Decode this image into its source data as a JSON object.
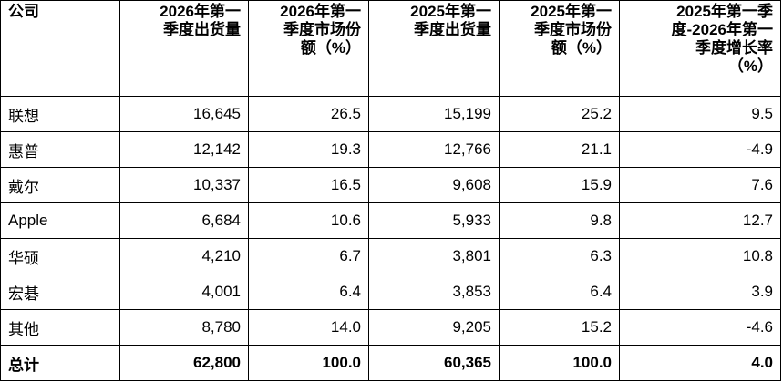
{
  "table": {
    "header": [
      [
        "公司"
      ],
      [
        "2026年第一",
        "季度出货量"
      ],
      [
        "2026年第一",
        "季度市场份",
        "额（%）"
      ],
      [
        "2025年第一",
        "季度出货量"
      ],
      [
        "2025年第一",
        "季度市场份",
        "额（%）"
      ],
      [
        "2025年第一季",
        "度-2026年第一",
        "季度增长率",
        "（%）"
      ]
    ],
    "rows": [
      [
        "联想",
        "16,645",
        "26.5",
        "15,199",
        "25.2",
        "9.5"
      ],
      [
        "惠普",
        "12,142",
        "19.3",
        "12,766",
        "21.1",
        "-4.9"
      ],
      [
        "戴尔",
        "10,337",
        "16.5",
        "9,608",
        "15.9",
        "7.6"
      ],
      [
        "Apple",
        "6,684",
        "10.6",
        "5,933",
        "9.8",
        "12.7"
      ],
      [
        "华硕",
        "4,210",
        "6.7",
        "3,801",
        "6.3",
        "10.8"
      ],
      [
        "宏碁",
        "4,001",
        "6.4",
        "3,853",
        "6.4",
        "3.9"
      ],
      [
        "其他",
        "8,780",
        "14.0",
        "9,205",
        "15.2",
        "-4.6"
      ]
    ],
    "total": [
      "总计",
      "62,800",
      "100.0",
      "60,365",
      "100.0",
      "4.0"
    ]
  }
}
